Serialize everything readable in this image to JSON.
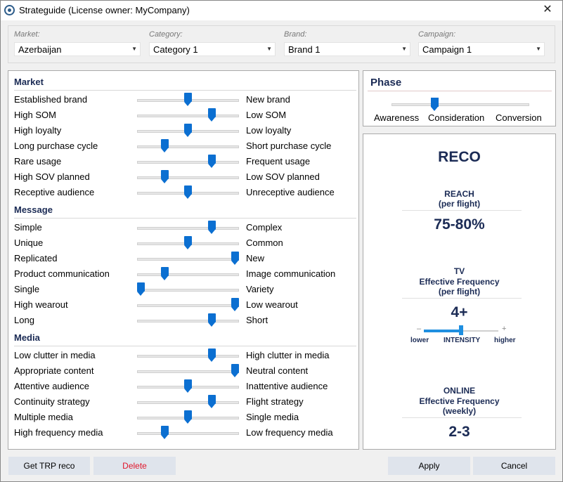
{
  "window": {
    "title": "Strateguide (License owner: MyCompany)",
    "close_glyph": "✕",
    "icon": "target-icon"
  },
  "filters": [
    {
      "label": "Market:",
      "value": "Azerbaijan"
    },
    {
      "label": "Category:",
      "value": "Category 1"
    },
    {
      "label": "Brand:",
      "value": "Brand 1"
    },
    {
      "label": "Campaign:",
      "value": "Campaign 1"
    }
  ],
  "sections": [
    {
      "title": "Market",
      "rows": [
        {
          "left": "Established brand",
          "right": "New brand",
          "level": 0.5
        },
        {
          "left": "High SOM",
          "right": "Low SOM",
          "level": 0.75
        },
        {
          "left": "High loyalty",
          "right": "Low loyalty",
          "level": 0.5
        },
        {
          "left": "Long purchase cycle",
          "right": "Short purchase cycle",
          "level": 0.25
        },
        {
          "left": "Rare usage",
          "right": "Frequent usage",
          "level": 0.75
        },
        {
          "left": "High SOV planned",
          "right": "Low SOV planned",
          "level": 0.25
        },
        {
          "left": "Receptive audience",
          "right": "Unreceptive audience",
          "level": 0.5
        }
      ]
    },
    {
      "title": "Message",
      "rows": [
        {
          "left": "Simple",
          "right": "Complex",
          "level": 0.75
        },
        {
          "left": "Unique",
          "right": "Common",
          "level": 0.5
        },
        {
          "left": "Replicated",
          "right": "New",
          "level": 1.0
        },
        {
          "left": "Product communication",
          "right": "Image communication",
          "level": 0.25
        },
        {
          "left": "Single",
          "right": "Variety",
          "level": 0.0
        },
        {
          "left": "High wearout",
          "right": "Low wearout",
          "level": 1.0
        },
        {
          "left": "Long",
          "right": "Short",
          "level": 0.75
        }
      ]
    },
    {
      "title": "Media",
      "rows": [
        {
          "left": "Low clutter in media",
          "right": "High clutter in media",
          "level": 0.75
        },
        {
          "left": "Appropriate content",
          "right": "Neutral content",
          "level": 1.0
        },
        {
          "left": "Attentive audience",
          "right": "Inattentive audience",
          "level": 0.5
        },
        {
          "left": "Continuity strategy",
          "right": "Flight strategy",
          "level": 0.75
        },
        {
          "left": "Multiple media",
          "right": "Single media",
          "level": 0.5
        },
        {
          "left": "High frequency media",
          "right": "Low frequency media",
          "level": 0.25
        }
      ]
    }
  ],
  "phase": {
    "title": "Phase",
    "labels": [
      "Awareness",
      "Consideration",
      "Conversion"
    ],
    "level": 0.3
  },
  "reco": {
    "title": "RECO",
    "reach_label_1": "REACH",
    "reach_label_2": "(per flight)",
    "reach_value": "75-80%",
    "tv_label_1": "TV",
    "tv_label_2": "Effective Frequency",
    "tv_label_3": "(per flight)",
    "tv_value": "4+",
    "intensity_minus": "–",
    "intensity_plus": "+",
    "intensity_lower": "lower",
    "intensity_label": "INTENSITY",
    "intensity_higher": "higher",
    "intensity_level": 0.5,
    "online_label_1": "ONLINE",
    "online_label_2": "Effective Frequency",
    "online_label_3": "(weekly)",
    "online_value": "2-3"
  },
  "buttons": {
    "get_trp": "Get TRP reco",
    "delete": "Delete",
    "apply": "Apply",
    "cancel": "Cancel"
  },
  "colors": {
    "accent": "#0b6fd1",
    "heading": "#1b2b55",
    "delete_text": "#e0162b",
    "button_bg": "#dfe4ec"
  }
}
